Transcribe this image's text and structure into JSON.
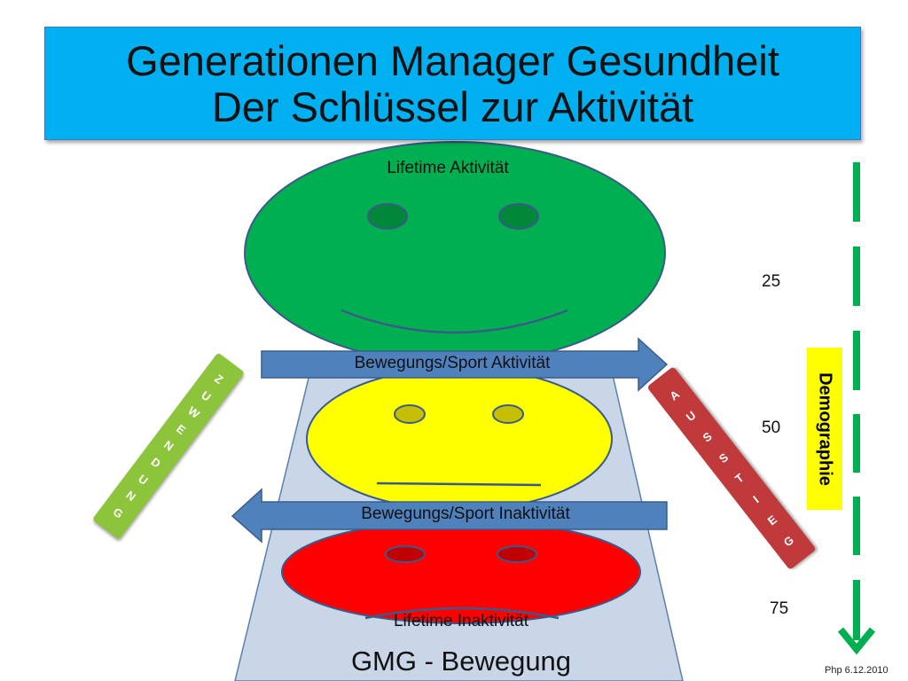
{
  "title": {
    "line1": "Generationen Manager Gesundheit",
    "line2": "Der Schlüssel zur Aktivität"
  },
  "faces": {
    "top_label": "Lifetime Aktivität",
    "bottom_label": "Lifetime Inaktivität"
  },
  "arrows": {
    "right": "Bewegungs/Sport Aktivität",
    "left": "Bewegungs/Sport Inaktivität"
  },
  "base_label": "GMG - Bewegung",
  "left_bar": {
    "letters": [
      "Z",
      "U",
      "W",
      "E",
      "N",
      "D",
      "U",
      "N",
      "G"
    ]
  },
  "right_bar": {
    "letters": [
      "A",
      "U",
      "S",
      "S",
      "T",
      "I",
      "E",
      "G"
    ]
  },
  "ages": [
    "25",
    "50",
    "75"
  ],
  "demographie": "Demographie",
  "footer": "Php 6.12.2010",
  "colors": {
    "title_bg": "#00b0f0",
    "green": "#00b050",
    "yellow": "#ffff00",
    "red": "#ff0000",
    "arrow": "#4f81bd",
    "base": "#c9d6e8"
  }
}
